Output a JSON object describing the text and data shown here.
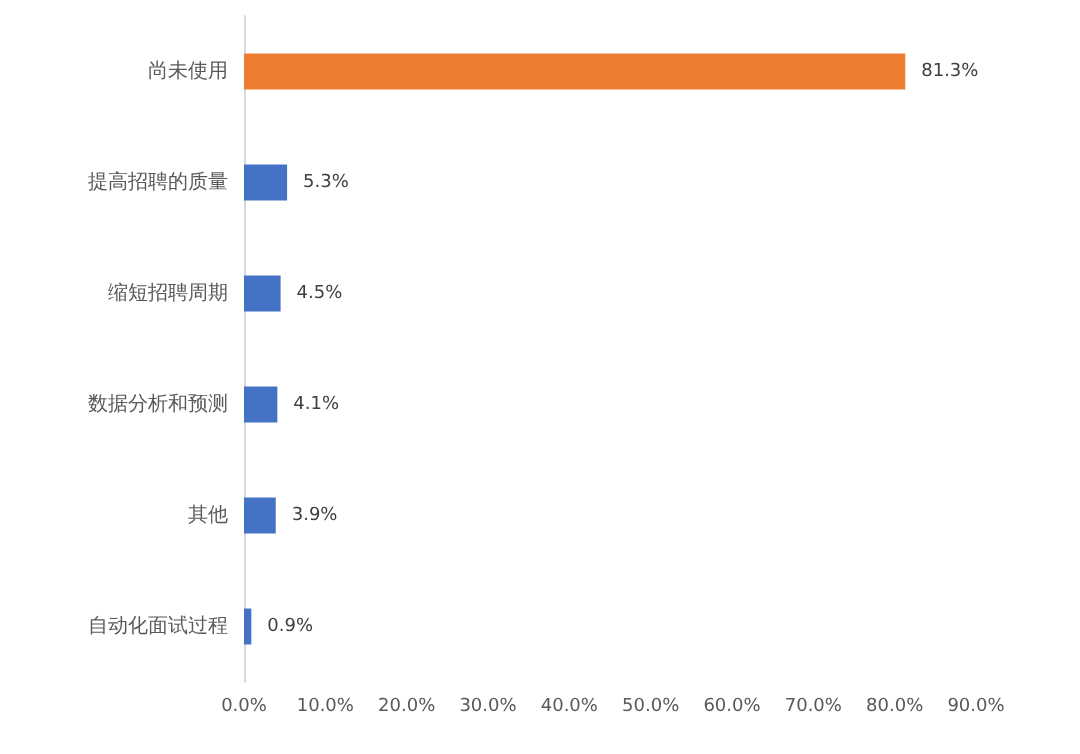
{
  "chart_data": {
    "type": "bar",
    "orientation": "horizontal",
    "categories": [
      "尚未使用",
      "提高招聘的质量",
      "缩短招聘周期",
      "数据分析和预测",
      "其他",
      "自动化面试过程"
    ],
    "values": [
      81.3,
      5.3,
      4.5,
      4.1,
      3.9,
      0.9
    ],
    "colors": [
      "#ed7d31",
      "#4472c4",
      "#4472c4",
      "#4472c4",
      "#4472c4",
      "#4472c4"
    ],
    "value_labels": [
      "81.3%",
      "5.3%",
      "4.5%",
      "4.1%",
      "3.9%",
      "0.9%"
    ],
    "xlim": [
      0,
      90
    ],
    "xticks": [
      {
        "value": 0,
        "label": "0.0%"
      },
      {
        "value": 10,
        "label": "10.0%"
      },
      {
        "value": 20,
        "label": "20.0%"
      },
      {
        "value": 30,
        "label": "30.0%"
      },
      {
        "value": 40,
        "label": "40.0%"
      },
      {
        "value": 50,
        "label": "50.0%"
      },
      {
        "value": 60,
        "label": "60.0%"
      },
      {
        "value": 70,
        "label": "70.0%"
      },
      {
        "value": 80,
        "label": "80.0%"
      },
      {
        "value": 90,
        "label": "90.0%"
      }
    ]
  }
}
